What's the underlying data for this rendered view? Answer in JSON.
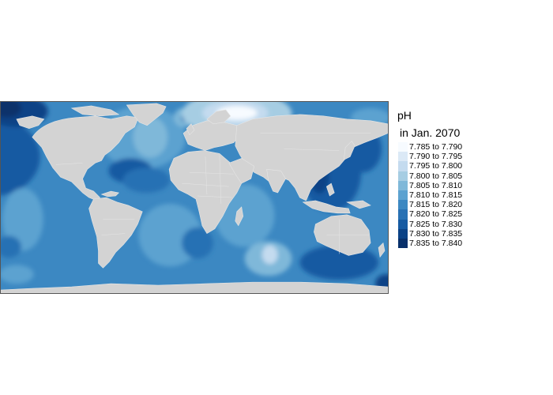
{
  "legend": {
    "title_line1": "pH",
    "title_line2": "in Jan. 2070",
    "items": [
      {
        "label": "7.785 to 7.790",
        "color": "#f7fbff"
      },
      {
        "label": "7.790 to 7.795",
        "color": "#dbe9f6"
      },
      {
        "label": "7.795 to 7.800",
        "color": "#c4dbef"
      },
      {
        "label": "7.800 to 7.805",
        "color": "#a6cde3"
      },
      {
        "label": "7.805 to 7.810",
        "color": "#7fb8d9"
      },
      {
        "label": "7.810 to 7.815",
        "color": "#5ca2d0"
      },
      {
        "label": "7.815 to 7.820",
        "color": "#3c88c2"
      },
      {
        "label": "7.820 to 7.825",
        "color": "#2871b4"
      },
      {
        "label": "7.825 to 7.830",
        "color": "#165aa2"
      },
      {
        "label": "7.830 to 7.835",
        "color": "#0b4286"
      },
      {
        "label": "7.835 to 7.840",
        "color": "#08306b"
      }
    ]
  },
  "map": {
    "land_color": "#d3d3d3",
    "border_color": "#e6e6e6",
    "ocean_base_color": "#3c88c2"
  }
}
